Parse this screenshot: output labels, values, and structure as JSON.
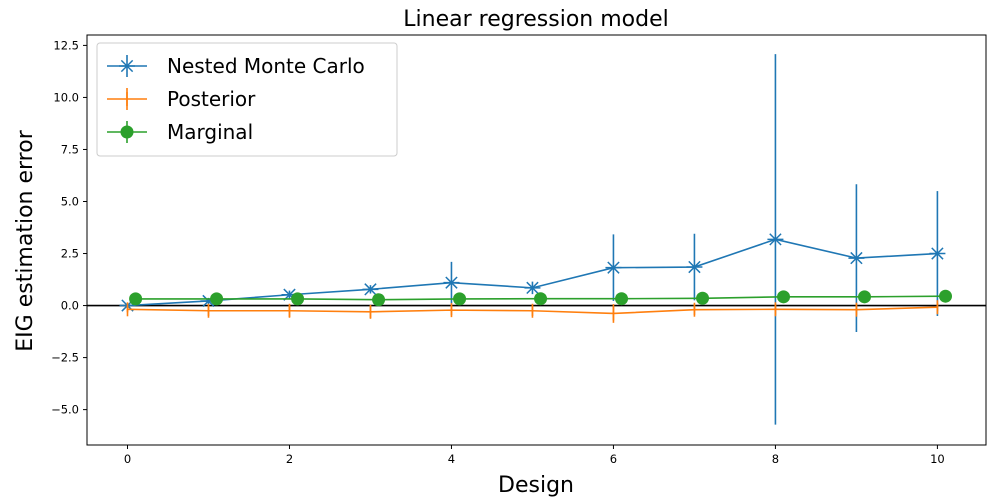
{
  "chart_data": {
    "type": "line",
    "title": "Linear regression model",
    "xlabel": "Design",
    "ylabel": "EIG estimation error",
    "xlim": [
      -0.5,
      10.6
    ],
    "ylim": [
      -6.7,
      13.0
    ],
    "xticks": [
      0,
      2,
      4,
      6,
      8,
      10
    ],
    "yticks": [
      -5.0,
      -2.5,
      0.0,
      2.5,
      5.0,
      7.5,
      10.0,
      12.5
    ],
    "ytick_labels": [
      "−5.0",
      "−2.5",
      "0.0",
      "2.5",
      "5.0",
      "7.5",
      "10.0",
      "12.5"
    ],
    "zero_line": true,
    "grid": false,
    "legend": "top-left",
    "series": [
      {
        "name": "Nested Monte Carlo",
        "color": "#1f77b4",
        "marker": "asterisk",
        "x": [
          0,
          1,
          2,
          3,
          4,
          5,
          6,
          7,
          8,
          9,
          10
        ],
        "y": [
          0.0,
          0.22,
          0.52,
          0.78,
          1.1,
          0.85,
          1.82,
          1.85,
          3.18,
          2.28,
          2.5
        ],
        "err": [
          0.1,
          0.15,
          0.2,
          0.2,
          1.0,
          0.3,
          1.6,
          1.6,
          8.9,
          3.55,
          3.0
        ]
      },
      {
        "name": "Posterior",
        "color": "#ff7f0e",
        "marker": "vline",
        "x": [
          0,
          1,
          2,
          3,
          4,
          5,
          6,
          7,
          8,
          9,
          10
        ],
        "y": [
          -0.18,
          -0.25,
          -0.25,
          -0.3,
          -0.22,
          -0.25,
          -0.38,
          -0.2,
          -0.18,
          -0.2,
          -0.08
        ],
        "err": [
          0.15,
          0.25,
          0.3,
          0.3,
          0.25,
          0.25,
          0.45,
          0.25,
          0.25,
          0.25,
          0.2
        ]
      },
      {
        "name": "Marginal",
        "color": "#2ca02c",
        "marker": "circle",
        "x": [
          0.1,
          1.1,
          2.1,
          3.1,
          4.1,
          5.1,
          6.1,
          7.1,
          8.1,
          9.1,
          10.1
        ],
        "y": [
          0.32,
          0.32,
          0.32,
          0.28,
          0.32,
          0.33,
          0.33,
          0.35,
          0.42,
          0.42,
          0.45
        ],
        "err": [
          0.05,
          0.05,
          0.05,
          0.05,
          0.05,
          0.05,
          0.05,
          0.05,
          0.05,
          0.05,
          0.05
        ]
      }
    ]
  }
}
